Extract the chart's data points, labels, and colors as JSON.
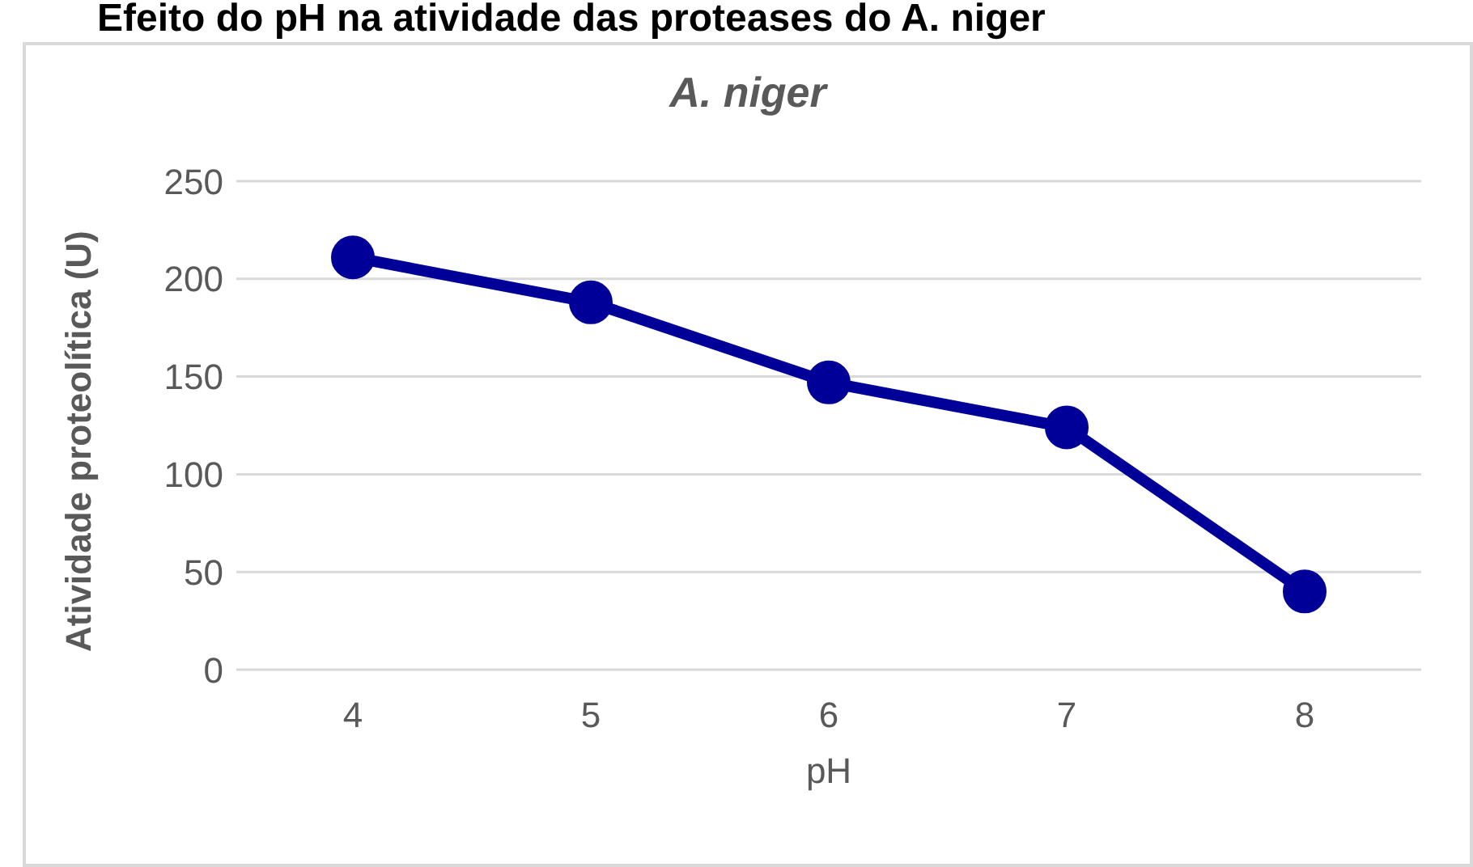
{
  "chart_data": {
    "type": "line",
    "title": "Efeito do pH na atividade das proteases do A. niger",
    "subtitle": "A. niger",
    "xlabel": "pH",
    "ylabel": "Atividade proteolítica (U)",
    "categories": [
      "4",
      "5",
      "6",
      "7",
      "8"
    ],
    "series": [
      {
        "color": "#000099",
        "values": [
          211,
          188,
          147,
          124,
          40
        ]
      }
    ],
    "ylim": [
      0,
      250
    ],
    "yticks": [
      0,
      50,
      100,
      150,
      200,
      250
    ],
    "grid": "y",
    "marker": "circle",
    "line_style": "solid"
  }
}
